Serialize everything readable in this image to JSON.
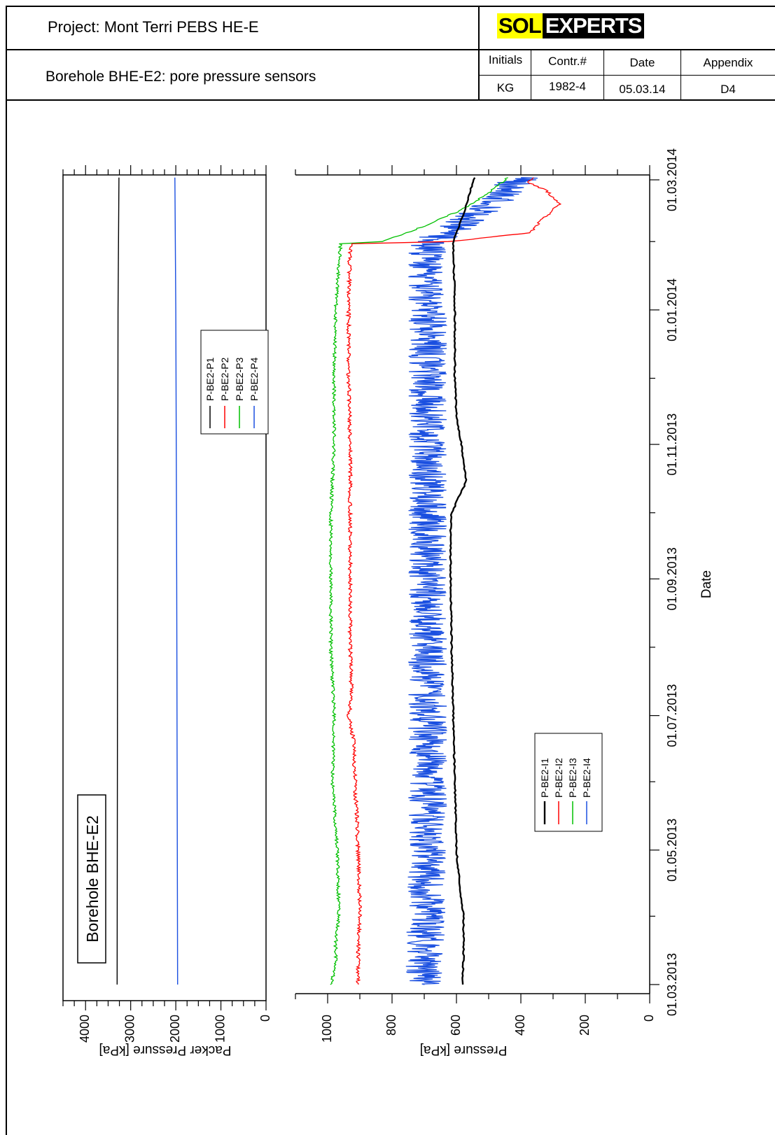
{
  "header": {
    "project": "Project: Mont Terri PEBS HE-E",
    "subtitle": "Borehole BHE-E2: pore pressure sensors",
    "logo_part1": "SOL",
    "logo_part2": "EXPERTS",
    "table": {
      "headers": [
        "Initials",
        "Contr.#",
        "Date",
        "Appendix"
      ],
      "values": [
        "KG",
        "1982-4",
        "05.03.14",
        "D4"
      ]
    }
  },
  "colors": {
    "black": "#000000",
    "red": "#ff0000",
    "green": "#00c000",
    "blue": "#1a4fe0"
  },
  "chart_data": [
    {
      "type": "line",
      "title": "",
      "annotation": "Borehole BHE-E2",
      "xlabel": "",
      "ylabel": "Packer Pressure [kPa]",
      "ylim": [
        0,
        4000
      ],
      "ytick_labels": [
        "0",
        "1000",
        "2000",
        "3000",
        "4000"
      ],
      "x_range": [
        "01.03.2013",
        "02.03.2014"
      ],
      "legend": [
        "P-BE2-P1",
        "P-BE2-P2",
        "P-BE2-P3",
        "P-BE2-P4"
      ],
      "series": [
        {
          "name": "P-BE2-P1",
          "color": "#000000",
          "x": [
            "01.03.2013",
            "01.09.2013",
            "01.01.2014",
            "02.03.2014"
          ],
          "y": [
            3300,
            3290,
            3280,
            3260
          ]
        },
        {
          "name": "P-BE2-P4",
          "color": "#1a4fe0",
          "x": [
            "01.03.2013",
            "01.09.2013",
            "01.01.2014",
            "02.03.2014"
          ],
          "y": [
            1960,
            1980,
            2000,
            2020
          ]
        }
      ]
    },
    {
      "type": "line",
      "title": "",
      "xlabel": "Date",
      "ylabel": "Pressure [kPa]",
      "ylim": [
        0,
        1100
      ],
      "ytick_labels": [
        "0",
        "200",
        "400",
        "600",
        "800",
        "1000"
      ],
      "xtick_labels": [
        "01.03.2013",
        "01.05.2013",
        "01.07.2013",
        "01.09.2013",
        "01.11.2013",
        "01.01.2014",
        "01.03.2014"
      ],
      "legend": [
        "P-BE2-I1",
        "P-BE2-I2",
        "P-BE2-I3",
        "P-BE2-I4"
      ],
      "series": [
        {
          "name": "P-BE2-I1",
          "color": "#000000",
          "x": [
            "01.03.2013",
            "15.03.2013",
            "01.04.2013",
            "15.04.2013",
            "01.05.2013",
            "01.06.2013",
            "01.07.2013",
            "01.08.2013",
            "01.09.2013",
            "25.09.2013",
            "01.10.2013",
            "15.10.2013",
            "01.11.2013",
            "15.11.2013",
            "01.12.2013",
            "01.01.2014",
            "01.02.2014",
            "15.02.2014",
            "02.03.2014"
          ],
          "y": [
            582,
            578,
            578,
            590,
            600,
            605,
            610,
            615,
            618,
            618,
            615,
            570,
            585,
            600,
            605,
            605,
            610,
            575,
            545
          ]
        },
        {
          "name": "P-BE2-I2",
          "color": "#ff0000",
          "x": [
            "01.03.2013",
            "15.03.2013",
            "01.04.2013",
            "01.05.2013",
            "01.06.2013",
            "20.06.2013",
            "01.07.2013",
            "10.07.2013",
            "01.08.2013",
            "01.09.2013",
            "01.10.2013",
            "01.11.2013",
            "01.12.2013",
            "01.01.2014",
            "31.01.2014",
            "01.02.2014",
            "05.02.2014",
            "10.02.2014",
            "18.02.2014",
            "24.02.2014",
            "28.02.2014",
            "02.03.2014"
          ],
          "y": [
            905,
            905,
            900,
            905,
            915,
            920,
            935,
            925,
            930,
            930,
            930,
            930,
            935,
            935,
            930,
            620,
            370,
            340,
            280,
            320,
            380,
            360
          ]
        },
        {
          "name": "P-BE2-I3",
          "color": "#00c000",
          "x": [
            "01.03.2013",
            "10.03.2013",
            "20.03.2013",
            "01.04.2013",
            "01.05.2013",
            "01.06.2013",
            "01.07.2013",
            "01.08.2013",
            "01.09.2013",
            "01.10.2013",
            "01.11.2013",
            "01.12.2013",
            "01.01.2014",
            "31.01.2014",
            "01.02.2014",
            "08.02.2014",
            "15.02.2014",
            "22.02.2014",
            "02.03.2014"
          ],
          "y": [
            990,
            975,
            975,
            965,
            970,
            985,
            980,
            990,
            990,
            990,
            980,
            980,
            975,
            960,
            830,
            700,
            590,
            510,
            440
          ]
        },
        {
          "name": "P-BE2-I4",
          "color": "#1a4fe0",
          "x": [
            "01.03.2013",
            "01.05.2013",
            "01.07.2013",
            "01.09.2013",
            "01.11.2013",
            "01.01.2014",
            "31.01.2014",
            "15.02.2014",
            "02.03.2014"
          ],
          "y": [
            700,
            690,
            690,
            690,
            690,
            690,
            690,
            520,
            400
          ]
        }
      ]
    }
  ]
}
